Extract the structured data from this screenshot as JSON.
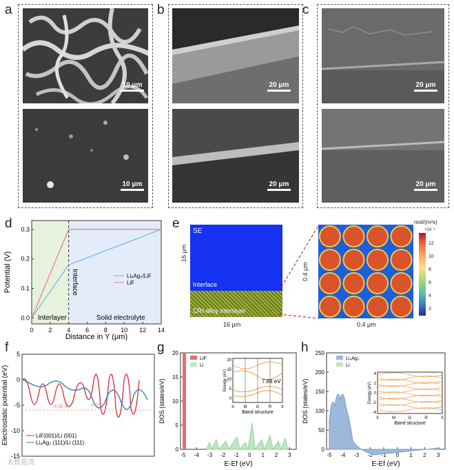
{
  "panels": {
    "a": {
      "label": "a",
      "top_scale": "10 μm",
      "bottom_scale": "10 μm"
    },
    "b": {
      "label": "b",
      "top_scale": "20 μm",
      "bottom_scale": "20 μm"
    },
    "c": {
      "label": "c",
      "top_scale": "20 μm",
      "bottom_scale": "20 μm"
    },
    "d": {
      "label": "d"
    },
    "e": {
      "label": "e",
      "se": "SE",
      "interface": "Interface",
      "interlayer": "CRI-alloy interlayer",
      "ylabel_left": "16 μm",
      "xlabel_left": "16 μm",
      "ylabel_right": "0.4 μm",
      "xlabel_right": "0.4 μm",
      "cbar_title": "mol/(m²s)",
      "cbar_exp": "×10⁻⁵",
      "cbar_ticks": [
        "12",
        "10",
        "8",
        "6",
        "4",
        "2"
      ]
    },
    "f": {
      "label": "f"
    },
    "g": {
      "label": "g"
    },
    "h": {
      "label": "h"
    }
  },
  "watermark": "大数据流",
  "chart_data": [
    {
      "panel": "d",
      "type": "line",
      "xlabel": "Distance in Y (μm)",
      "ylabel": "Potential (V)",
      "xlim": [
        0,
        14
      ],
      "ylim": [
        -0.02,
        0.33
      ],
      "xticks": [
        "0",
        "2",
        "4",
        "6",
        "8",
        "10",
        "12",
        "14"
      ],
      "yticks": [
        "0.0",
        "0.1",
        "0.2",
        "0.3"
      ],
      "regions": [
        "Interlayer",
        "Interface",
        "Solid electrolyte"
      ],
      "series": [
        {
          "name": "Li₉Ag₃/LiF",
          "color": "#6ab4e0",
          "x": [
            0,
            4,
            14
          ],
          "y": [
            0,
            0.18,
            0.3
          ]
        },
        {
          "name": "LiF",
          "color": "#e07a85",
          "x": [
            0,
            4,
            14
          ],
          "y": [
            0,
            0.3,
            0.3
          ]
        }
      ]
    },
    {
      "panel": "f",
      "type": "line",
      "xlabel": "",
      "ylabel": "Electrostatic potential (eV)",
      "ylim": [
        -15,
        5
      ],
      "yticks": [
        "5",
        "0",
        "-5",
        "-10",
        "-15"
      ],
      "annotations": [
        "-4.00 eV",
        "-4.36 eV"
      ],
      "series": [
        {
          "name": "LiF(001)/Li (001)",
          "color": "#d6262e"
        },
        {
          "name": "Li₉Ag₃ (111)/Li (111)",
          "color": "#2f7fc1"
        }
      ]
    },
    {
      "panel": "g",
      "type": "area",
      "xlabel": "E-Ef (eV)",
      "ylabel": "DOS (states/eV)",
      "xlim": [
        -5.2,
        3.5
      ],
      "ylim": [
        0,
        20
      ],
      "xticks": [
        "-5",
        "-4",
        "-3",
        "-2",
        "-1",
        "0",
        "1",
        "2",
        "3"
      ],
      "yticks": [
        "0",
        "5",
        "10",
        "15",
        "20"
      ],
      "legend": [
        "LiF",
        "Li"
      ],
      "inset": {
        "ylabel": "Energy (eV)",
        "xlabel": "Band structure",
        "gap": "7.88 eV",
        "xticks": [
          "X",
          "M",
          "G",
          "R",
          "X"
        ],
        "yticks": [
          "20",
          "15",
          "10",
          "5",
          "0"
        ]
      }
    },
    {
      "panel": "h",
      "type": "area",
      "xlabel": "E-Ef (eV)",
      "ylabel": "DOS (states/eV)",
      "xlim": [
        -5.2,
        3.5
      ],
      "ylim": [
        0,
        250
      ],
      "xticks": [
        "-5",
        "-4",
        "-3",
        "-2",
        "-1",
        "0",
        "1",
        "2",
        "3"
      ],
      "yticks": [
        "0",
        "50",
        "100",
        "150",
        "200",
        "250"
      ],
      "legend": [
        "Li₉Ag₃",
        "Li"
      ],
      "inset": {
        "ylabel": "Energy (eV)",
        "xlabel": "Band structure",
        "xticks": [
          "X",
          "M",
          "G",
          "R",
          "X"
        ],
        "yticks": [
          "4",
          "2",
          "0",
          "-2",
          "-4"
        ]
      }
    }
  ]
}
